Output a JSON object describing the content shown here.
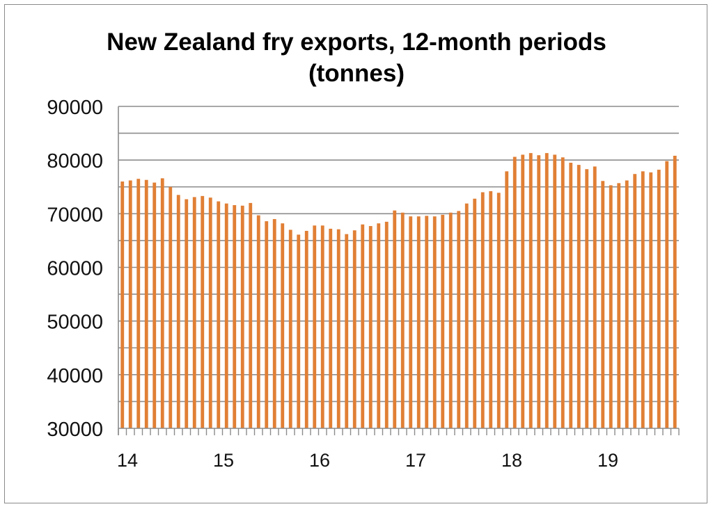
{
  "chart_data": {
    "type": "bar",
    "title_line1": "New Zealand fry exports, 12-month periods",
    "title_line2": "(tonnes)",
    "xlabel": "",
    "ylabel": "",
    "ylim": [
      30000,
      90000
    ],
    "yticks": [
      "90000",
      "80000",
      "70000",
      "60000",
      "50000",
      "40000",
      "30000"
    ],
    "ytick_values": [
      90000,
      80000,
      70000,
      60000,
      50000,
      40000,
      30000
    ],
    "xtick_labels": [
      "14",
      "15",
      "16",
      "17",
      "18",
      "19"
    ],
    "xtick_index": [
      0,
      12,
      24,
      36,
      48,
      60
    ],
    "grid": true,
    "legend": "none",
    "bar_color": "#E07F35",
    "grid_color": "#8c8c8c",
    "series": [
      {
        "values": [
          76000,
          76200,
          76500,
          76300,
          75800,
          76600,
          75000,
          73500,
          72700,
          73100,
          73300,
          73000,
          72300,
          71900,
          71600,
          71500,
          72000,
          69700,
          68600,
          69000,
          68200,
          67000,
          66100,
          66800,
          67800,
          67800,
          67200,
          67100,
          66200,
          66900,
          68000,
          67700,
          68200,
          68500,
          70600,
          70200,
          69500,
          69500,
          69600,
          69500,
          69800,
          70200,
          70500,
          71900,
          72800,
          74000,
          74200,
          73900,
          77900,
          80600,
          81000,
          81300,
          80900,
          81300,
          81000,
          80500,
          79500,
          79100,
          78300,
          78800,
          76100,
          75300,
          75700,
          76200,
          77400,
          77900,
          77700,
          78200,
          79800,
          80800
        ]
      }
    ]
  }
}
